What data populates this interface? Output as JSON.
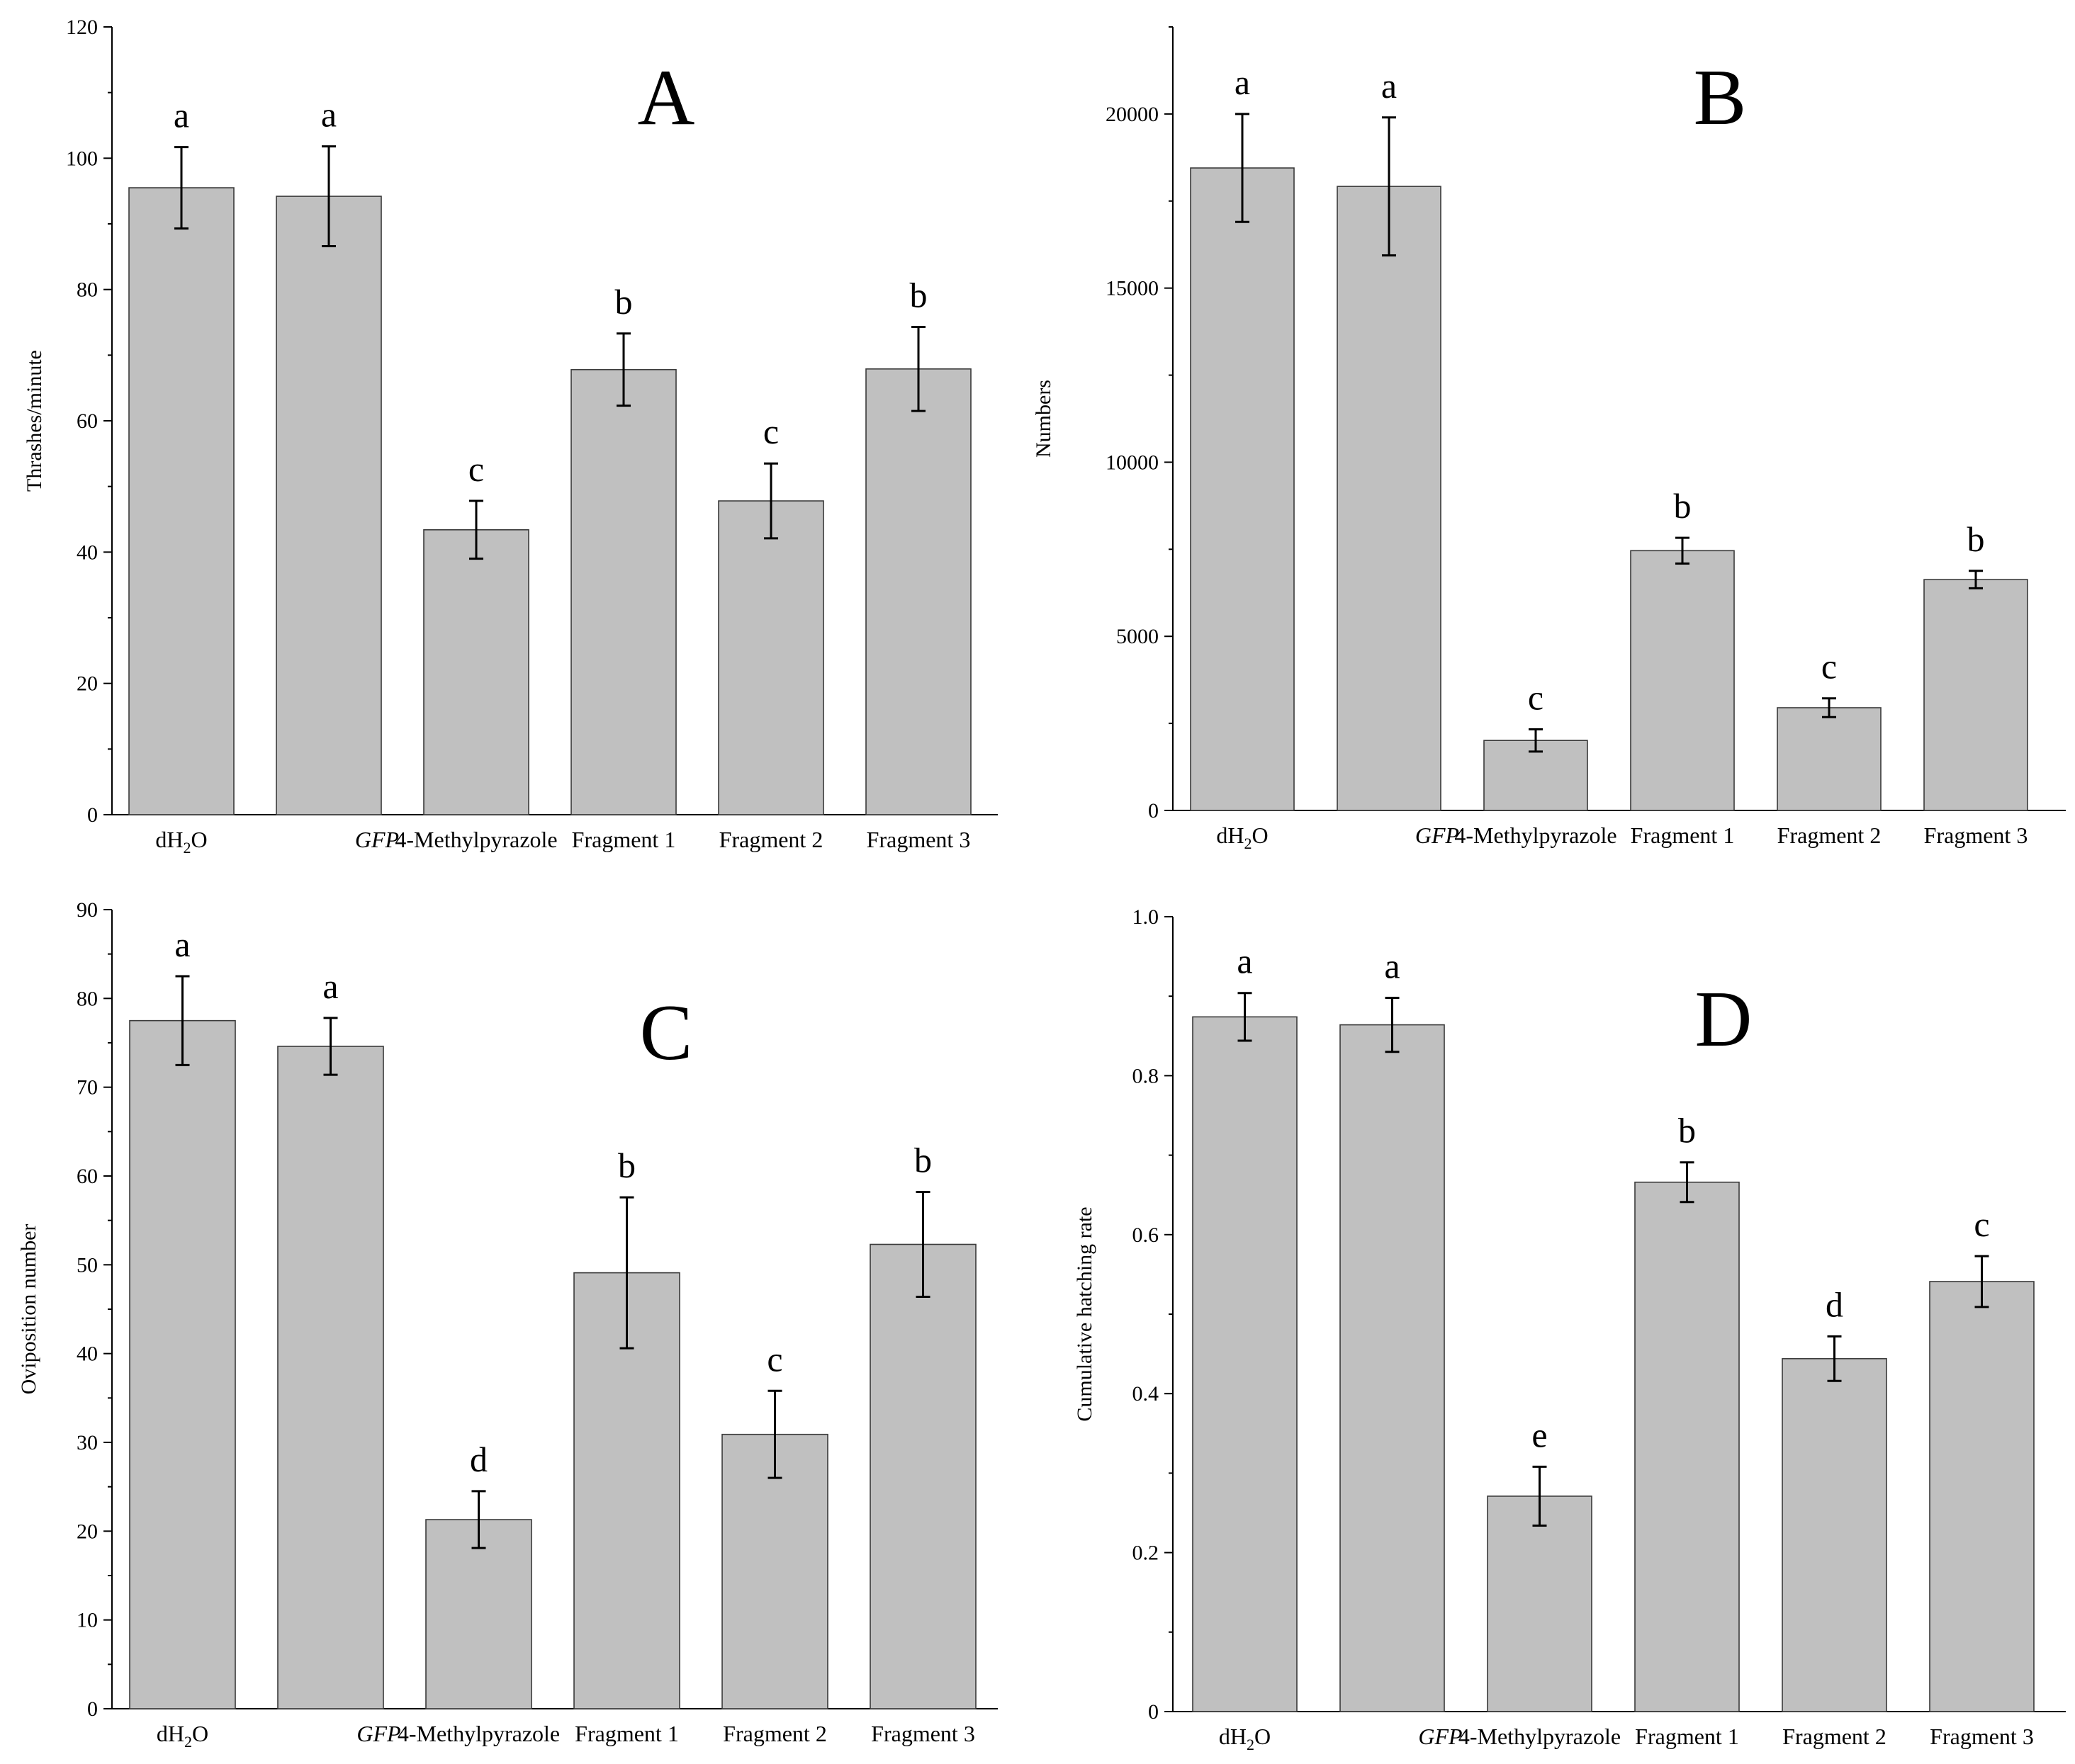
{
  "categories": [
    "dH2O",
    "GFP",
    "4-Methylpyrazole",
    "Fragment 1",
    "Fragment 2",
    "Fragment 3"
  ],
  "category_display": {
    "dh2o_prefix": "dH",
    "dh2o_sub": "2",
    "dh2o_suffix": "O",
    "gfp": "GFP",
    "methylpyrazole": "4-Methylpyrazole",
    "fragment1": "Fragment 1",
    "fragment2": "Fragment 2",
    "fragment3": "Fragment 3"
  },
  "colors": {
    "bar_fill": "#c0c0c0",
    "bar_stroke": "#3a3a3a",
    "axis": "#000000"
  },
  "chart_data": [
    {
      "type": "bar",
      "panel": "A",
      "title": "",
      "xlabel": "",
      "ylabel": "Thrashes/minute",
      "ylim": [
        0,
        120
      ],
      "yticks": [
        0,
        20,
        40,
        60,
        80,
        100,
        120
      ],
      "ytick_labels": [
        "0",
        "20",
        "40",
        "60",
        "80",
        "100",
        "120"
      ],
      "categories": [
        "dH2O",
        "GFP",
        "4-Methylpyrazole",
        "Fragment 1",
        "Fragment 2",
        "Fragment 3"
      ],
      "values": [
        95.5,
        94.2,
        43.4,
        67.8,
        47.8,
        67.9
      ],
      "errors": [
        6.2,
        7.6,
        4.4,
        5.5,
        5.7,
        6.4
      ],
      "significance": [
        "a",
        "a",
        "c",
        "b",
        "c",
        "b"
      ]
    },
    {
      "type": "bar",
      "panel": "B",
      "title": "",
      "xlabel": "",
      "ylabel": "Numbers",
      "ylim": [
        0,
        22500
      ],
      "yticks": [
        0,
        5000,
        10000,
        15000,
        20000
      ],
      "ytick_labels": [
        "0",
        "5000",
        "10000",
        "15000",
        "20000"
      ],
      "categories": [
        "dH2O",
        "GFP",
        "4-Methylpyrazole",
        "Fragment 1",
        "Fragment 2",
        "Fragment 3"
      ],
      "values": [
        18450,
        17920,
        2010,
        7460,
        2950,
        6630
      ],
      "errors": [
        1550,
        1980,
        320,
        370,
        270,
        250
      ],
      "significance": [
        "a",
        "a",
        "c",
        "b",
        "c",
        "b"
      ]
    },
    {
      "type": "bar",
      "panel": "C",
      "title": "",
      "xlabel": "",
      "ylabel": "Oviposition number",
      "ylim": [
        0,
        90
      ],
      "yticks": [
        0,
        10,
        20,
        30,
        40,
        50,
        60,
        70,
        80,
        90
      ],
      "ytick_labels": [
        "0",
        "10",
        "20",
        "30",
        "40",
        "50",
        "60",
        "70",
        "80",
        "90"
      ],
      "categories": [
        "dH2O",
        "GFP",
        "4-Methylpyrazole",
        "Fragment 1",
        "Fragment 2",
        "Fragment 3"
      ],
      "values": [
        77.5,
        74.6,
        21.3,
        49.1,
        30.9,
        52.3
      ],
      "errors": [
        5.0,
        3.2,
        3.2,
        8.5,
        4.9,
        5.9
      ],
      "significance": [
        "a",
        "a",
        "d",
        "b",
        "c",
        "b"
      ]
    },
    {
      "type": "bar",
      "panel": "D",
      "title": "",
      "xlabel": "",
      "ylabel": "Cumulative hatching rate",
      "ylim": [
        0,
        1.0
      ],
      "yticks": [
        0,
        0.2,
        0.4,
        0.6,
        0.8,
        1.0
      ],
      "ytick_labels": [
        "0",
        "0.2",
        "0.4",
        "0.6",
        "0.8",
        "1.0"
      ],
      "categories": [
        "dH2O",
        "GFP",
        "4-Methylpyrazole",
        "Fragment 1",
        "Fragment 2",
        "Fragment 3"
      ],
      "values": [
        0.874,
        0.864,
        0.271,
        0.666,
        0.444,
        0.541
      ],
      "errors": [
        0.03,
        0.034,
        0.037,
        0.025,
        0.028,
        0.032
      ],
      "significance": [
        "a",
        "a",
        "e",
        "b",
        "d",
        "c"
      ]
    }
  ]
}
